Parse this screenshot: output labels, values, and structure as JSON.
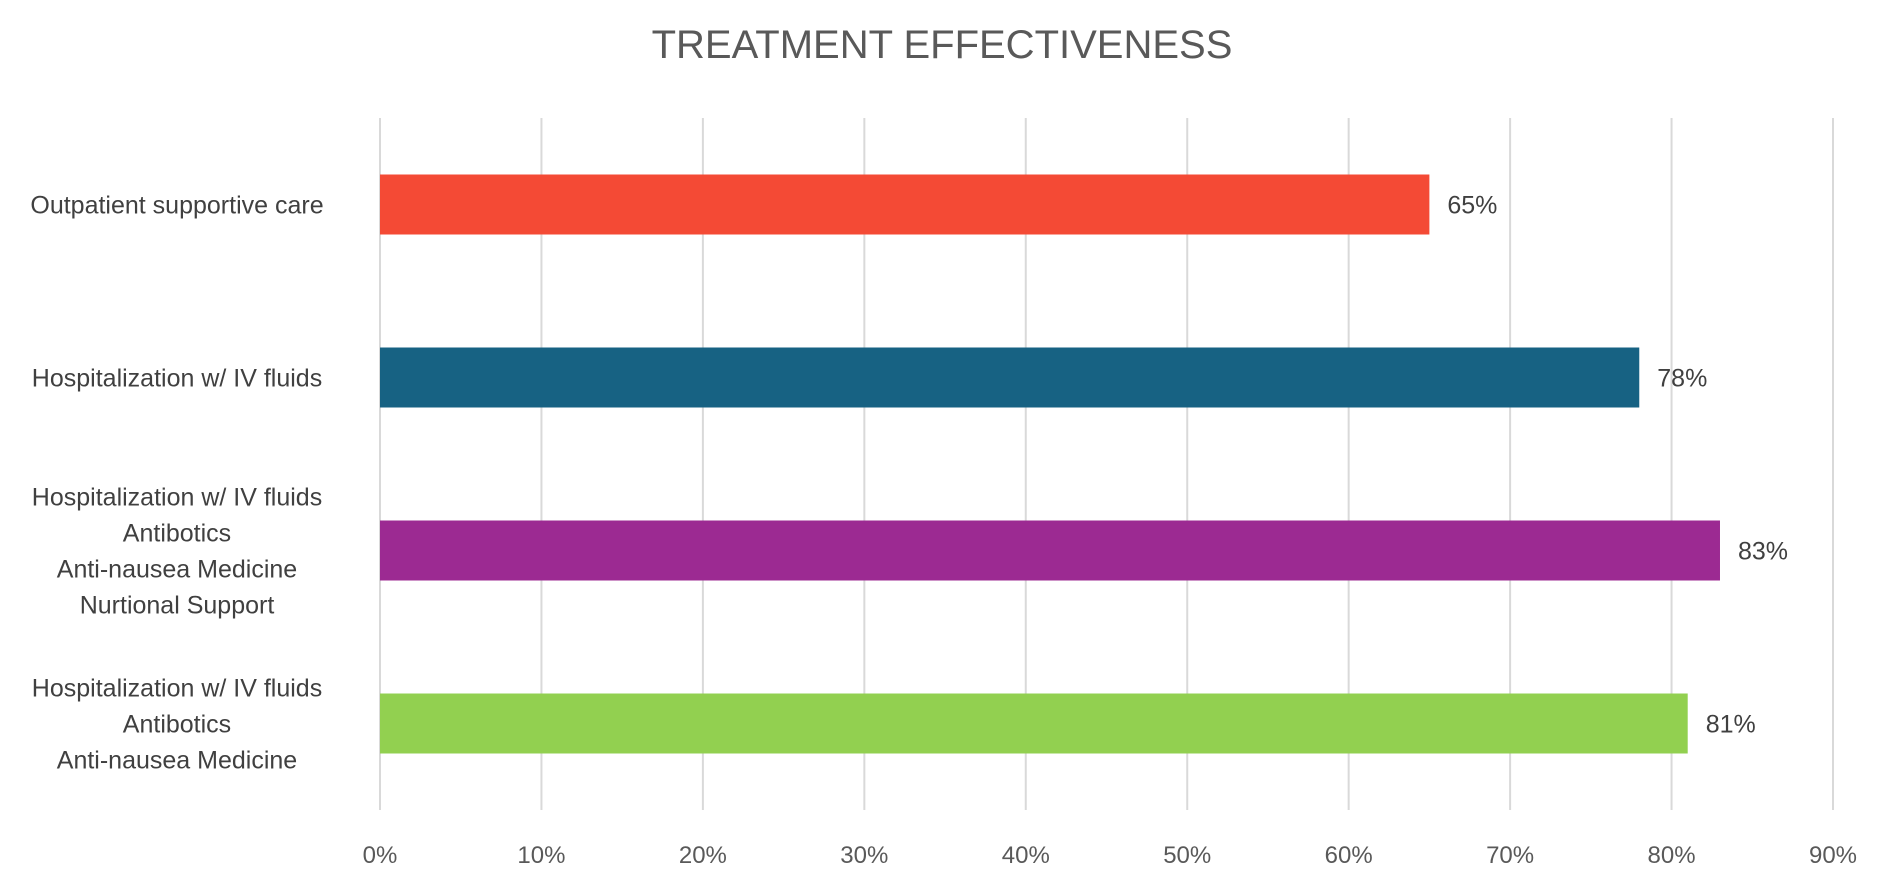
{
  "chart_data": {
    "type": "bar",
    "orientation": "horizontal",
    "title": "TREATMENT EFFECTIVENESS",
    "xlabel": "",
    "ylabel": "",
    "categories": [
      [
        "Outpatient supportive care"
      ],
      [
        "Hospitalization w/ IV fluids"
      ],
      [
        "Hospitalization w/ IV fluids",
        "Antibotics",
        "Anti-nausea Medicine",
        "Nurtional Support"
      ],
      [
        "Hospitalization w/ IV fluids",
        "Antibotics",
        "Anti-nausea Medicine"
      ]
    ],
    "values": [
      65,
      78,
      83,
      81
    ],
    "data_labels": [
      "65%",
      "78%",
      "83%",
      "81%"
    ],
    "bar_colors": [
      "#f44a35",
      "#176283",
      "#9c2a92",
      "#92d050"
    ],
    "xlim": [
      0,
      90
    ],
    "x_ticks": [
      0,
      10,
      20,
      30,
      40,
      50,
      60,
      70,
      80,
      90
    ],
    "x_tick_labels": [
      "0%",
      "10%",
      "20%",
      "30%",
      "40%",
      "50%",
      "60%",
      "70%",
      "80%",
      "90%"
    ],
    "grid": "vertical",
    "legend": "none"
  }
}
